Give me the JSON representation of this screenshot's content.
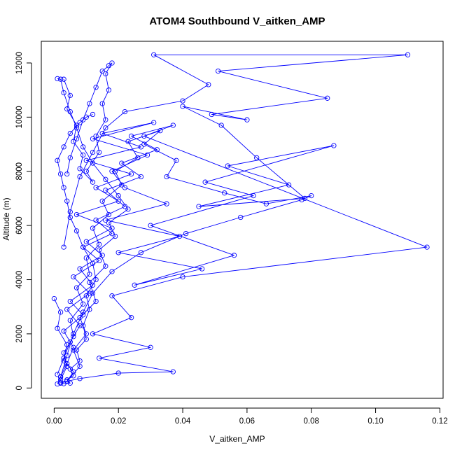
{
  "chart_data": {
    "type": "line",
    "title": "ATOM4 Southbound V_aitken_AMP",
    "xlabel": "V_aitken_AMP",
    "ylabel": "Altitude (m)",
    "xlim": [
      -0.004,
      0.121
    ],
    "ylim": [
      -380,
      12800
    ],
    "xticks": [
      0.0,
      0.02,
      0.04,
      0.06,
      0.08,
      0.1,
      0.12
    ],
    "xtick_labels": [
      "0.00",
      "0.02",
      "0.04",
      "0.06",
      "0.08",
      "0.10",
      "0.12"
    ],
    "yticks": [
      0,
      2000,
      4000,
      6000,
      8000,
      10000,
      12000
    ],
    "ytick_labels": [
      "0",
      "2000",
      "4000",
      "6000",
      "8000",
      "10000",
      "12000"
    ],
    "grid": false,
    "marker": "open-circle",
    "color": "#0000ff",
    "series": [
      {
        "x": [
          0.001,
          0.002,
          0.004,
          0.006,
          0.003,
          0.009,
          0.005,
          0.012,
          0.008,
          0.015,
          0.01,
          0.018,
          0.007,
          0.02,
          0.013,
          0.024,
          0.01,
          0.027,
          0.015,
          0.031,
          0.012,
          0.029,
          0.018,
          0.022,
          0.035,
          0.016,
          0.039,
          0.02,
          0.046,
          0.025,
          0.056,
          0.03,
          0.062,
          0.047,
          0.087,
          0.054,
          0.073,
          0.045,
          0.078,
          0.063,
          0.052,
          0.04,
          0.06,
          0.049,
          0.085,
          0.051,
          0.11,
          0.031,
          0.048,
          0.04,
          0.022,
          0.016,
          0.012,
          0.008,
          0.005,
          0.003
        ],
        "y": [
          150,
          420,
          900,
          1500,
          2100,
          2700,
          3200,
          3800,
          4400,
          4900,
          5400,
          5900,
          6400,
          6900,
          7400,
          7900,
          8400,
          8900,
          9400,
          9800,
          9200,
          8600,
          8000,
          7400,
          6800,
          6200,
          5600,
          5000,
          4400,
          3800,
          4900,
          6000,
          7100,
          7600,
          8950,
          8200,
          7500,
          6700,
          7000,
          8500,
          9700,
          10400,
          9900,
          10100,
          10700,
          11700,
          12300,
          12300,
          11200,
          10600,
          10200,
          9600,
          8700,
          7800,
          6500,
          5200
        ]
      },
      {
        "x": [
          0.002,
          0.004,
          0.003,
          0.006,
          0.005,
          0.009,
          0.007,
          0.011,
          0.01,
          0.014,
          0.012,
          0.017,
          0.015,
          0.021,
          0.019,
          0.026,
          0.023,
          0.033,
          0.028,
          0.038,
          0.035,
          0.053,
          0.066,
          0.08,
          0.077,
          0.058,
          0.041,
          0.027,
          0.018,
          0.012,
          0.009,
          0.006,
          0.004,
          0.002
        ],
        "y": [
          300,
          800,
          1300,
          1900,
          2500,
          3100,
          3700,
          4200,
          4800,
          5300,
          5900,
          6400,
          6900,
          7500,
          8000,
          8500,
          9100,
          9500,
          9000,
          8400,
          7800,
          7200,
          6800,
          7100,
          6950,
          6300,
          5700,
          5000,
          4300,
          3500,
          2800,
          2000,
          1200,
          400
        ]
      },
      {
        "x": [
          0.001,
          0.003,
          0.005,
          0.008,
          0.004,
          0.011,
          0.006,
          0.014,
          0.009,
          0.018,
          0.013,
          0.022,
          0.016,
          0.027,
          0.021,
          0.032,
          0.024,
          0.037,
          0.028,
          0.116,
          0.04,
          0.018,
          0.024,
          0.012,
          0.03,
          0.014,
          0.037,
          0.02,
          0.008,
          0.004,
          0.002
        ],
        "y": [
          500,
          1100,
          1700,
          2300,
          2900,
          3500,
          4100,
          4700,
          5200,
          5700,
          6200,
          6700,
          7300,
          7800,
          8300,
          8800,
          9300,
          9700,
          9300,
          5200,
          4100,
          3400,
          2600,
          2000,
          1500,
          1100,
          600,
          550,
          350,
          250,
          180
        ]
      },
      {
        "x": [
          0.0,
          0.002,
          0.001,
          0.004,
          0.003,
          0.006,
          0.004,
          0.008,
          0.006,
          0.01,
          0.008,
          0.013,
          0.011,
          0.016,
          0.014,
          0.019,
          0.017,
          0.023,
          0.02,
          0.016,
          0.012,
          0.009,
          0.007,
          0.005,
          0.003,
          0.002,
          0.001
        ],
        "y": [
          3300,
          2800,
          2200,
          1600,
          1000,
          600,
          250,
          800,
          1400,
          2000,
          2600,
          3200,
          3900,
          4500,
          5100,
          5600,
          6100,
          6600,
          7100,
          7700,
          8300,
          8900,
          9600,
          10200,
          10900,
          11400,
          11420
        ]
      },
      {
        "x": [
          0.003,
          0.005,
          0.004,
          0.007,
          0.006,
          0.009,
          0.008,
          0.012,
          0.01,
          0.014,
          0.013,
          0.016,
          0.015,
          0.017,
          0.016,
          0.018,
          0.017,
          0.015,
          0.013,
          0.011,
          0.009,
          0.007,
          0.005,
          0.004
        ],
        "y": [
          11400,
          10800,
          10300,
          9700,
          9100,
          8600,
          8100,
          7600,
          8000,
          8700,
          9300,
          9900,
          10500,
          11000,
          11600,
          12000,
          11900,
          11700,
          11100,
          10500,
          9900,
          9200,
          8500,
          7900
        ]
      },
      {
        "x": [
          0.002,
          0.003,
          0.005,
          0.004,
          0.006,
          0.005,
          0.008,
          0.007,
          0.01,
          0.009,
          0.011,
          0.01,
          0.013,
          0.012,
          0.009,
          0.007,
          0.005,
          0.004,
          0.003,
          0.002,
          0.001,
          0.003,
          0.005,
          0.008,
          0.01,
          0.012
        ],
        "y": [
          200,
          160,
          180,
          300,
          450,
          700,
          1000,
          1400,
          1800,
          2300,
          2900,
          3400,
          4000,
          4600,
          5200,
          5800,
          6300,
          6900,
          7400,
          7900,
          8400,
          8900,
          9400,
          9800,
          10000,
          10100
        ]
      }
    ]
  }
}
